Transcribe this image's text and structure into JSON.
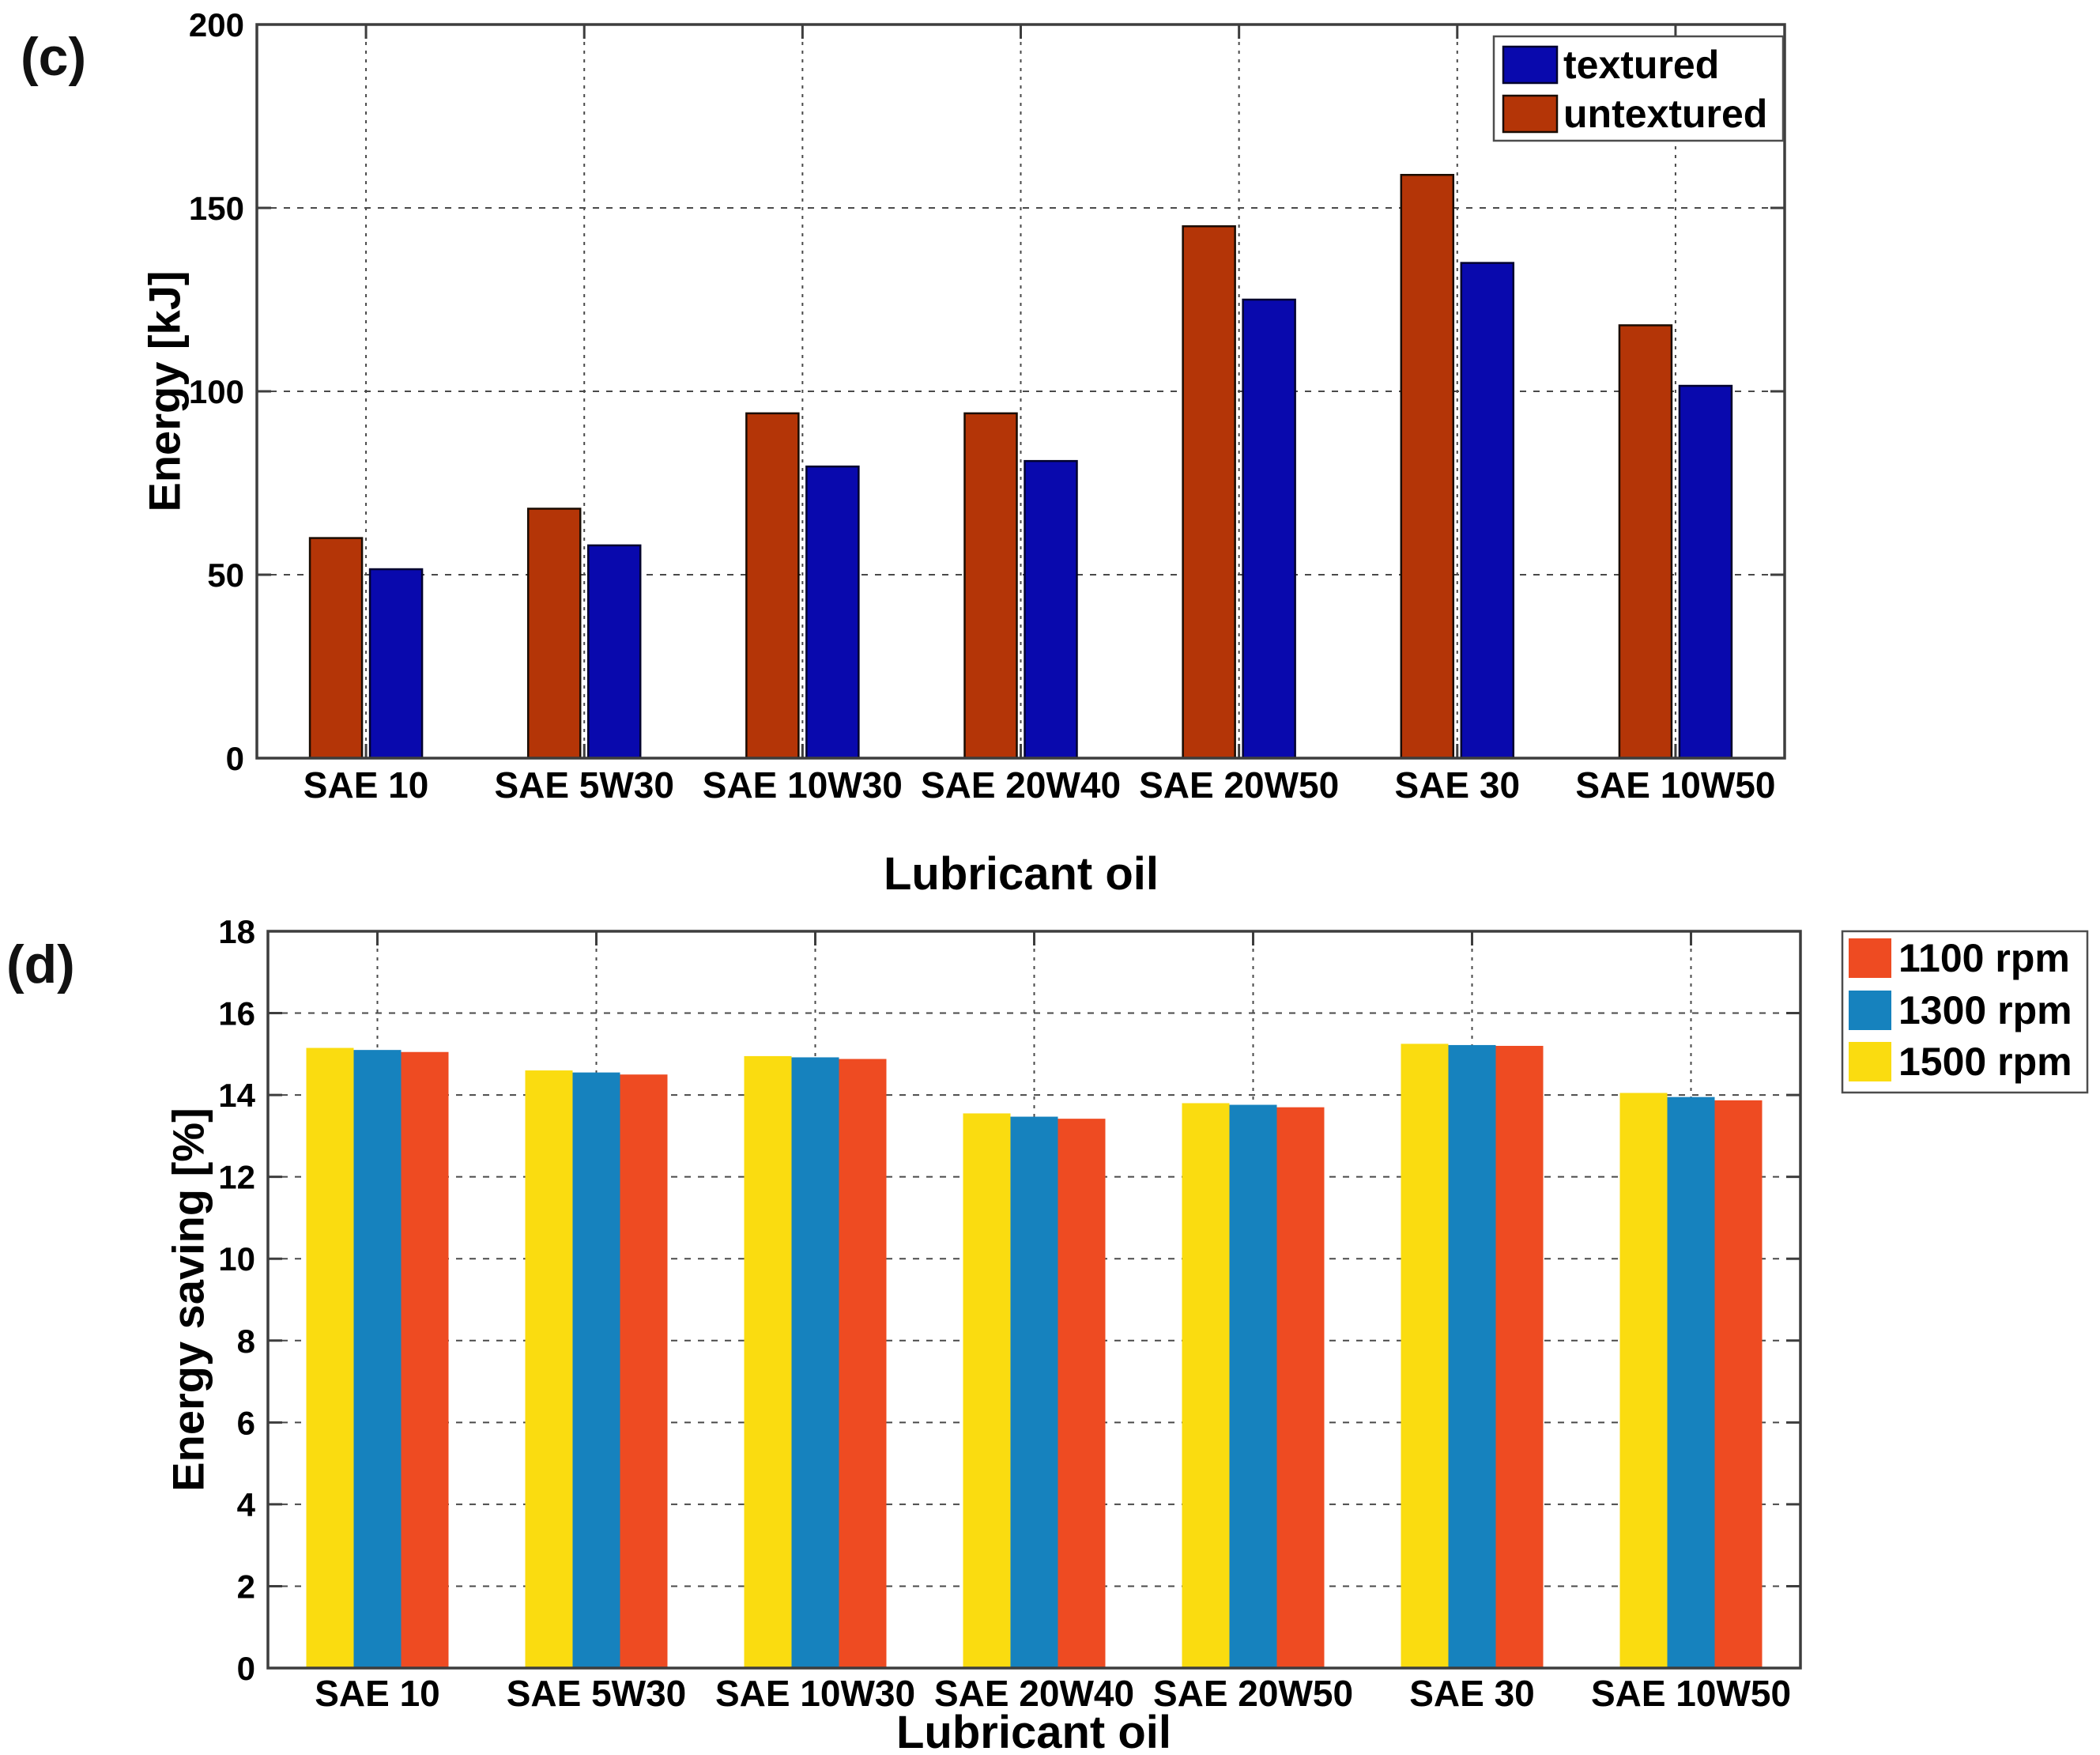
{
  "figure": {
    "background_color": "#ffffff",
    "frame_color": "#3d3d3d",
    "grid_color": "#4a4a4a"
  },
  "chart_data": [
    {
      "type": "bar",
      "panel_label": "(c)",
      "xlabel": "Lubricant oil",
      "ylabel": "Energy [kJ]",
      "categories": [
        "SAE 10",
        "SAE 5W30",
        "SAE 10W30",
        "SAE 20W40",
        "SAE 20W50",
        "SAE 30",
        "SAE 10W50"
      ],
      "ylim": [
        0,
        200
      ],
      "yticks": [
        0,
        50,
        100,
        150,
        200
      ],
      "grid": "dashed horizontal gridlines at yticks and dotted vertical gridlines at category centers",
      "legend_position": "inside top-right",
      "series": [
        {
          "name": "untextured",
          "color": "#b43507",
          "edge_color": "#1a0c02",
          "values": [
            60,
            68,
            94,
            94,
            145,
            159,
            118
          ]
        },
        {
          "name": "textured",
          "color": "#0909ad",
          "edge_color": "#03032e",
          "values": [
            51.5,
            58,
            79.5,
            81,
            125,
            135,
            101.5
          ]
        }
      ],
      "legend_entries": [
        {
          "label": "textured",
          "color": "#0909ad"
        },
        {
          "label": "untextured",
          "color": "#b43507"
        }
      ]
    },
    {
      "type": "bar",
      "panel_label": "(d)",
      "xlabel": "Lubricant oil",
      "ylabel": "Energy saving [%]",
      "categories": [
        "SAE 10",
        "SAE 5W30",
        "SAE 10W30",
        "SAE 20W40",
        "SAE 20W50",
        "SAE 30",
        "SAE 10W50"
      ],
      "ylim": [
        0,
        18
      ],
      "yticks": [
        0,
        2,
        4,
        6,
        8,
        10,
        12,
        14,
        16,
        18
      ],
      "grid": "dashed horizontal gridlines at yticks and dotted vertical gridlines at category centers",
      "legend_position": "outside top-right",
      "series": [
        {
          "name": "1500 rpm",
          "color": "#fadc10",
          "edge_color": null,
          "values": [
            15.15,
            14.6,
            14.95,
            13.55,
            13.8,
            15.25,
            14.05
          ]
        },
        {
          "name": "1300 rpm",
          "color": "#1682be",
          "edge_color": null,
          "values": [
            15.1,
            14.55,
            14.92,
            13.47,
            13.76,
            15.22,
            13.95
          ]
        },
        {
          "name": "1100 rpm",
          "color": "#ee4b22",
          "edge_color": null,
          "values": [
            15.05,
            14.5,
            14.88,
            13.42,
            13.7,
            15.2,
            13.87
          ]
        }
      ],
      "legend_entries": [
        {
          "label": "1100 rpm",
          "color": "#ee4b22"
        },
        {
          "label": "1300 rpm",
          "color": "#1682be"
        },
        {
          "label": "1500 rpm",
          "color": "#fadc10"
        }
      ]
    }
  ]
}
